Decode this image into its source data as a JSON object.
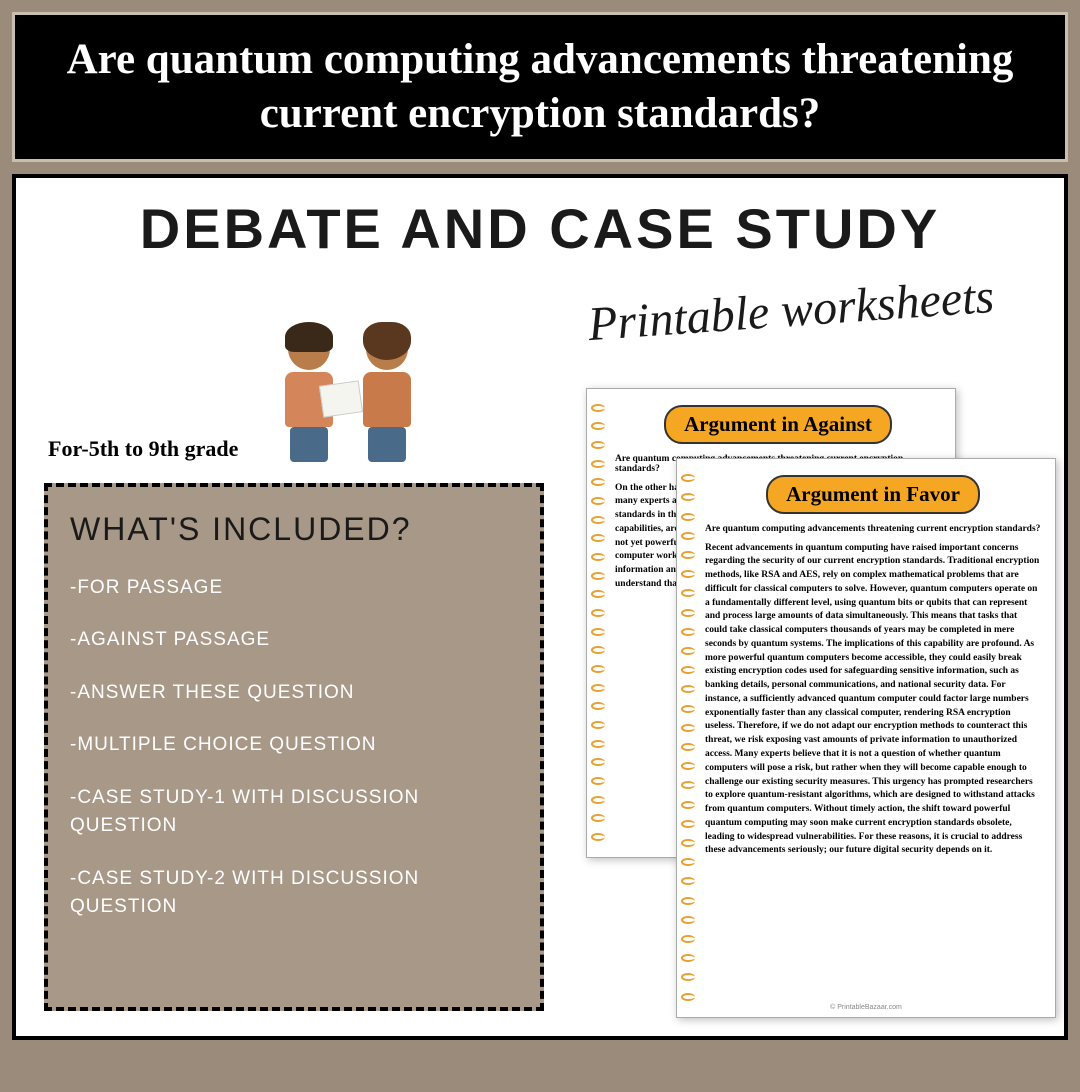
{
  "header": {
    "title": "Are quantum computing advancements threatening current encryption standards?"
  },
  "main": {
    "title": "Debate and case study",
    "script": "Printable worksheets",
    "grade": "For-5th to 9th grade"
  },
  "included": {
    "heading": "WHAT'S INCLUDED?",
    "items": [
      "-For passage",
      "-Against passage",
      "-Answer these question",
      "-Multiple choice question",
      "-Case study-1 with discussion question",
      "-Case study-2 with discussion question"
    ]
  },
  "worksheet_against": {
    "title": "Argument in Against",
    "question": "Are quantum computing advancements threatening current encryption standards?",
    "body": "On the other hand, while advancements in quantum computing are impressive, many experts argue that they do not necessarily threaten current encryption standards in the immediate future. Current quantum computers, despite their capabilities, are still in the early stages of development, and many of them are not yet powerful enough to break existing encryption built upon against a computer working resistant cryptography computing investment encryption information and govern future while quantum opportunities Additional understand that we may be over years as a landscape advancement our current"
  },
  "worksheet_favor": {
    "title": "Argument in Favor",
    "question": "Are quantum computing advancements threatening current encryption standards?",
    "body": "Recent advancements in quantum computing have raised important concerns regarding the security of our current encryption standards. Traditional encryption methods, like RSA and AES, rely on complex mathematical problems that are difficult for classical computers to solve. However, quantum computers operate on a fundamentally different level, using quantum bits or qubits that can represent and process large amounts of data simultaneously. This means that tasks that could take classical computers thousands of years may be completed in mere seconds by quantum systems. The implications of this capability are profound. As more powerful quantum computers become accessible, they could easily break existing encryption codes used for safeguarding sensitive information, such as banking details, personal communications, and national security data. For instance, a sufficiently advanced quantum computer could factor large numbers exponentially faster than any classical computer, rendering RSA encryption useless. Therefore, if we do not adapt our encryption methods to counteract this threat, we risk exposing vast amounts of private information to unauthorized access. Many experts believe that it is not a question of whether quantum computers will pose a risk, but rather when they will become capable enough to challenge our existing security measures. This urgency has prompted researchers to explore quantum-resistant algorithms, which are designed to withstand attacks from quantum computers. Without timely action, the shift toward powerful quantum computing may soon make current encryption standards obsolete, leading to widespread vulnerabilities. For these reasons, it is crucial to address these advancements seriously; our future digital security depends on it.",
    "footer": "© PrintableBazaar.com"
  },
  "colors": {
    "page_bg": "#9a8b7a",
    "header_bg": "#000000",
    "header_border": "#c8bfb0",
    "panel_bg": "#ffffff",
    "included_bg": "#a89888",
    "ws_header_bg": "#f5a623",
    "spiral": "#e8a030"
  }
}
